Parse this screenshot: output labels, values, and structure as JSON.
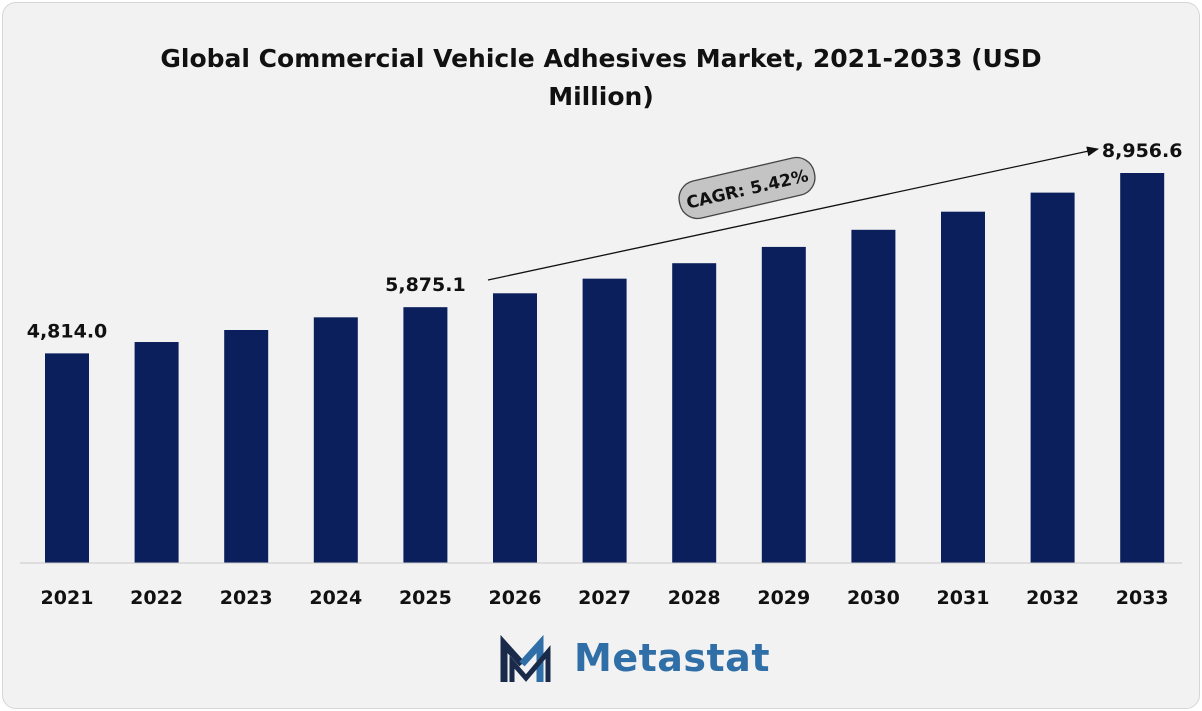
{
  "title_line1": "Global Commercial Vehicle Adhesives Market, 2021-2033 (USD",
  "title_line2": "Million)",
  "chart_data": {
    "type": "bar",
    "title": "Global Commercial Vehicle Adhesives Market, 2021-2033 (USD Million)",
    "categories": [
      "2021",
      "2022",
      "2023",
      "2024",
      "2025",
      "2026",
      "2027",
      "2028",
      "2029",
      "2030",
      "2031",
      "2032",
      "2033"
    ],
    "values": [
      4814.0,
      5075,
      5351,
      5642,
      5875.1,
      6194,
      6530,
      6885,
      7259,
      7652,
      8068,
      8506,
      8956.6
    ],
    "data_labels": [
      {
        "index": 0,
        "text": "4,814.0"
      },
      {
        "index": 4,
        "text": "5,875.1"
      },
      {
        "index": 12,
        "text": "8,956.6"
      }
    ],
    "annotation": "CAGR: 5.42%",
    "bar_color": "#0b1f5c",
    "grid": false,
    "legend": "none"
  },
  "brand": {
    "name": "Metastat",
    "icon": "metastat-m-logo-icon",
    "dark_color": "#1a2a4a",
    "blue_color": "#2f6ea6"
  }
}
